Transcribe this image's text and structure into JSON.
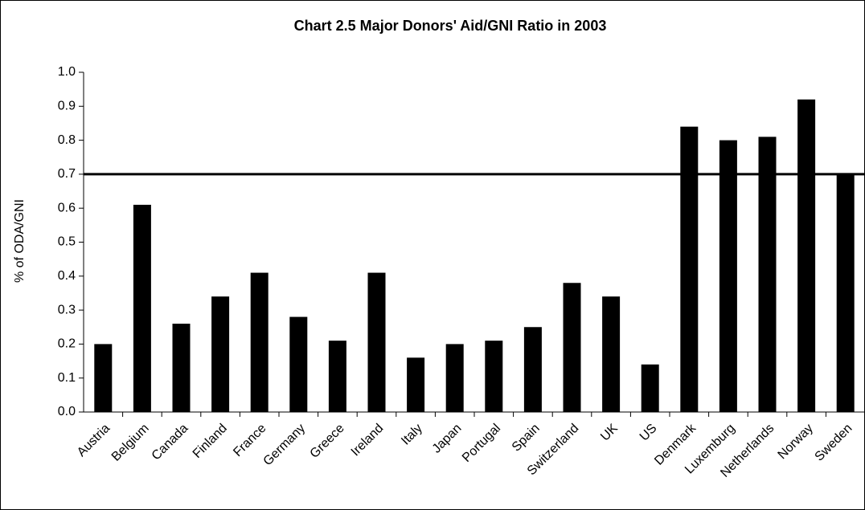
{
  "chart_data": {
    "type": "bar",
    "title": "Chart 2.5 Major Donors' Aid/GNI Ratio in 2003",
    "ylabel": "% of ODA/GNI",
    "categories": [
      "Austria",
      "Belgium",
      "Canada",
      "Finland",
      "France",
      "Germany",
      "Greece",
      "Ireland",
      "Italy",
      "Japan",
      "Portugal",
      "Spain",
      "Switzerland",
      "UK",
      "US",
      "Denmark",
      "Luxemburg",
      "Netherlands",
      "Norway",
      "Sweden"
    ],
    "values": [
      0.2,
      0.61,
      0.26,
      0.34,
      0.41,
      0.28,
      0.21,
      0.41,
      0.16,
      0.2,
      0.21,
      0.25,
      0.38,
      0.34,
      0.14,
      0.84,
      0.8,
      0.81,
      0.92,
      0.7
    ],
    "color": "#000000",
    "ylim": [
      0,
      1.0
    ],
    "yticks": [
      {
        "value": 0,
        "label": "0.0"
      },
      0.1,
      0.2,
      0.3,
      0.4,
      0.5,
      0.6,
      0.7,
      0.8,
      0.9,
      {
        "value": 1.0,
        "label": "1.0"
      }
    ],
    "reference_line": 0.7,
    "grid": false
  }
}
